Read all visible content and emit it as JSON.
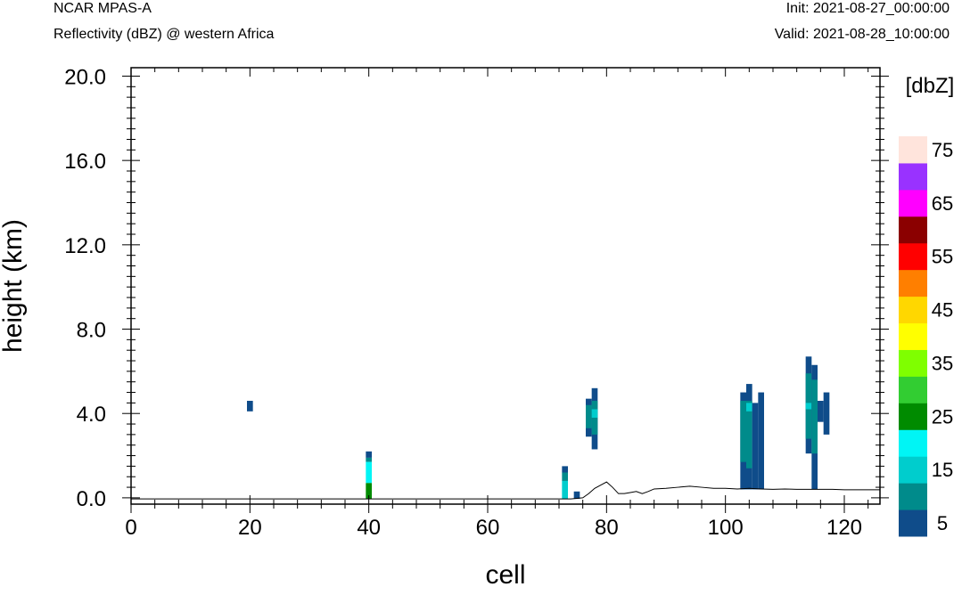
{
  "header": {
    "model": "NCAR MPAS-A",
    "field": "Reflectivity (dBZ) @ western Africa",
    "init": "Init: 2021-08-27_00:00:00",
    "valid": "Valid: 2021-08-28_10:00:00"
  },
  "chart_data": {
    "type": "heatmap",
    "xlabel": "cell",
    "ylabel": "height (km)",
    "xlim": [
      0,
      126
    ],
    "ylim": [
      -0.3,
      20.4
    ],
    "x_ticks": [
      0,
      20,
      40,
      60,
      80,
      100,
      120
    ],
    "y_ticks": [
      0.0,
      4.0,
      8.0,
      12.0,
      16.0,
      20.0
    ],
    "y_tick_labels": [
      "0.0",
      "4.0",
      "8.0",
      "12.0",
      "16.0",
      "20.0"
    ],
    "grid": false,
    "colorbar": {
      "title": "[dbZ]",
      "tick_labels": [
        "5",
        "15",
        "25",
        "35",
        "45",
        "55",
        "65",
        "75"
      ],
      "levels": [
        5,
        10,
        15,
        20,
        25,
        30,
        35,
        40,
        45,
        50,
        55,
        60,
        65,
        70,
        75
      ],
      "colors": [
        "#0f4c8a",
        "#008b8b",
        "#00cdcd",
        "#00f5f5",
        "#008b00",
        "#32cd32",
        "#7fff00",
        "#ffff00",
        "#ffd700",
        "#ff7f00",
        "#ff0000",
        "#8b0000",
        "#ff00ff",
        "#9932ff",
        "#ffe4dc"
      ]
    },
    "cells": [
      {
        "x": 20,
        "y0": 4.1,
        "y1": 4.6,
        "dbz": 5
      },
      {
        "x": 40,
        "y0": 1.9,
        "y1": 2.2,
        "dbz": 5
      },
      {
        "x": 40,
        "y0": 1.7,
        "y1": 1.9,
        "dbz": 10
      },
      {
        "x": 40,
        "y0": 0.7,
        "y1": 1.7,
        "dbz": 20
      },
      {
        "x": 40,
        "y0": -0.05,
        "y1": 0.7,
        "dbz": 25
      },
      {
        "x": 73,
        "y0": 1.2,
        "y1": 1.5,
        "dbz": 5
      },
      {
        "x": 73,
        "y0": 0.8,
        "y1": 1.2,
        "dbz": 10
      },
      {
        "x": 73,
        "y0": -0.05,
        "y1": 0.8,
        "dbz": 15
      },
      {
        "x": 75,
        "y0": -0.05,
        "y1": 0.3,
        "dbz": 5
      },
      {
        "x": 77,
        "y0": 2.9,
        "y1": 4.7,
        "dbz": 5
      },
      {
        "x": 77,
        "y0": 3.3,
        "y1": 4.4,
        "dbz": 10
      },
      {
        "x": 78,
        "y0": 2.3,
        "y1": 5.2,
        "dbz": 5
      },
      {
        "x": 78,
        "y0": 3.0,
        "y1": 4.6,
        "dbz": 10
      },
      {
        "x": 78,
        "y0": 3.8,
        "y1": 4.2,
        "dbz": 15
      },
      {
        "x": 103,
        "y0": 0.4,
        "y1": 5.0,
        "dbz": 5
      },
      {
        "x": 103,
        "y0": 1.7,
        "y1": 4.6,
        "dbz": 10
      },
      {
        "x": 104,
        "y0": 0.4,
        "y1": 5.4,
        "dbz": 5
      },
      {
        "x": 104,
        "y0": 1.4,
        "y1": 4.6,
        "dbz": 10
      },
      {
        "x": 104,
        "y0": 4.1,
        "y1": 4.5,
        "dbz": 15
      },
      {
        "x": 105,
        "y0": 0.4,
        "y1": 4.5,
        "dbz": 5
      },
      {
        "x": 106,
        "y0": 0.4,
        "y1": 5.0,
        "dbz": 5
      },
      {
        "x": 114,
        "y0": 2.1,
        "y1": 6.7,
        "dbz": 5
      },
      {
        "x": 114,
        "y0": 2.8,
        "y1": 5.9,
        "dbz": 10
      },
      {
        "x": 114,
        "y0": 4.2,
        "y1": 4.5,
        "dbz": 15
      },
      {
        "x": 115,
        "y0": 0.4,
        "y1": 6.3,
        "dbz": 5
      },
      {
        "x": 115,
        "y0": 2.1,
        "y1": 5.6,
        "dbz": 10
      },
      {
        "x": 116,
        "y0": 3.6,
        "y1": 4.6,
        "dbz": 5
      },
      {
        "x": 117,
        "y0": 3.0,
        "y1": 5.0,
        "dbz": 5
      }
    ],
    "terrain": {
      "x": [
        0,
        74,
        76,
        77,
        78,
        79,
        80,
        81,
        82,
        83,
        84,
        85,
        86,
        87,
        88,
        90,
        92,
        94,
        96,
        98,
        100,
        102,
        104,
        106,
        108,
        110,
        112,
        114,
        116,
        118,
        120,
        122,
        124,
        126
      ],
      "y": [
        -0.05,
        -0.05,
        0.0,
        0.2,
        0.45,
        0.6,
        0.75,
        0.5,
        0.2,
        0.2,
        0.25,
        0.3,
        0.2,
        0.3,
        0.42,
        0.45,
        0.5,
        0.55,
        0.5,
        0.45,
        0.45,
        0.42,
        0.45,
        0.42,
        0.4,
        0.42,
        0.4,
        0.4,
        0.4,
        0.4,
        0.38,
        0.38,
        0.38,
        0.38
      ]
    }
  }
}
